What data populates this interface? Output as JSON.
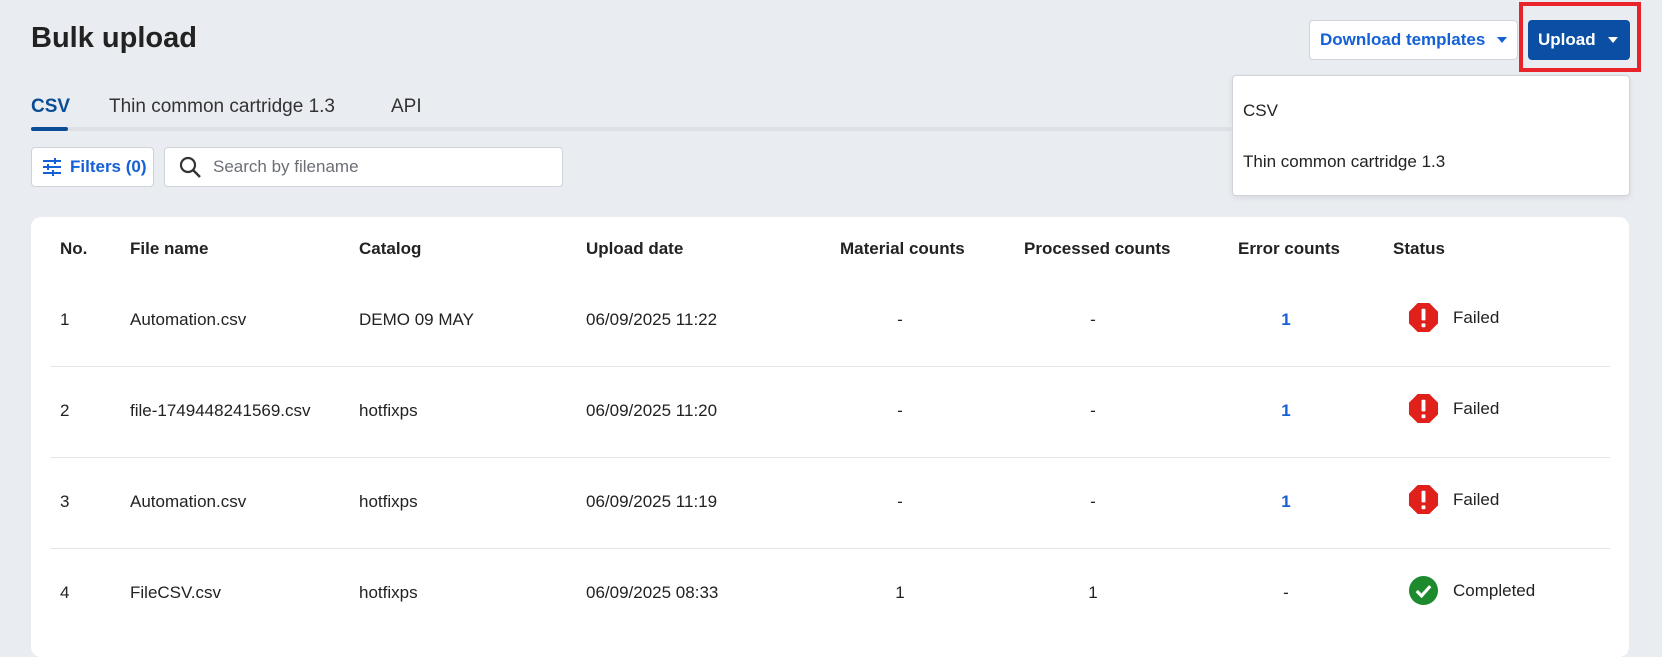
{
  "header": {
    "title": "Bulk upload",
    "download_templates": "Download templates",
    "upload": "Upload"
  },
  "tabs": [
    {
      "label": "CSV",
      "active": true
    },
    {
      "label": "Thin common cartridge 1.3"
    },
    {
      "label": "API"
    }
  ],
  "upload_menu": [
    "CSV",
    "Thin common cartridge 1.3"
  ],
  "toolbar": {
    "filters": "Filters (0)",
    "search_placeholder": "Search by filename"
  },
  "table": {
    "columns": [
      "No.",
      "File name",
      "Catalog",
      "Upload date",
      "Material counts",
      "Processed counts",
      "Error counts",
      "Status"
    ],
    "rows": [
      {
        "no": "1",
        "file": "Automation.csv",
        "catalog": "DEMO 09 MAY",
        "date": "06/09/2025 11:22",
        "material": "-",
        "processed": "-",
        "errors": "1",
        "status": "Failed"
      },
      {
        "no": "2",
        "file": "file-1749448241569.csv",
        "catalog": "hotfixps",
        "date": "06/09/2025 11:20",
        "material": "-",
        "processed": "-",
        "errors": "1",
        "status": "Failed"
      },
      {
        "no": "3",
        "file": "Automation.csv",
        "catalog": "hotfixps",
        "date": "06/09/2025 11:19",
        "material": "-",
        "processed": "-",
        "errors": "1",
        "status": "Failed"
      },
      {
        "no": "4",
        "file": "FileCSV.csv",
        "catalog": "hotfixps",
        "date": "06/09/2025 08:33",
        "material": "1",
        "processed": "1",
        "errors": "-",
        "status": "Completed"
      }
    ]
  },
  "colors": {
    "primary": "#0a4fa3",
    "link": "#1460d6",
    "failed": "#e0201b",
    "completed": "#1e8a2e",
    "highlight": "#e8232a"
  }
}
